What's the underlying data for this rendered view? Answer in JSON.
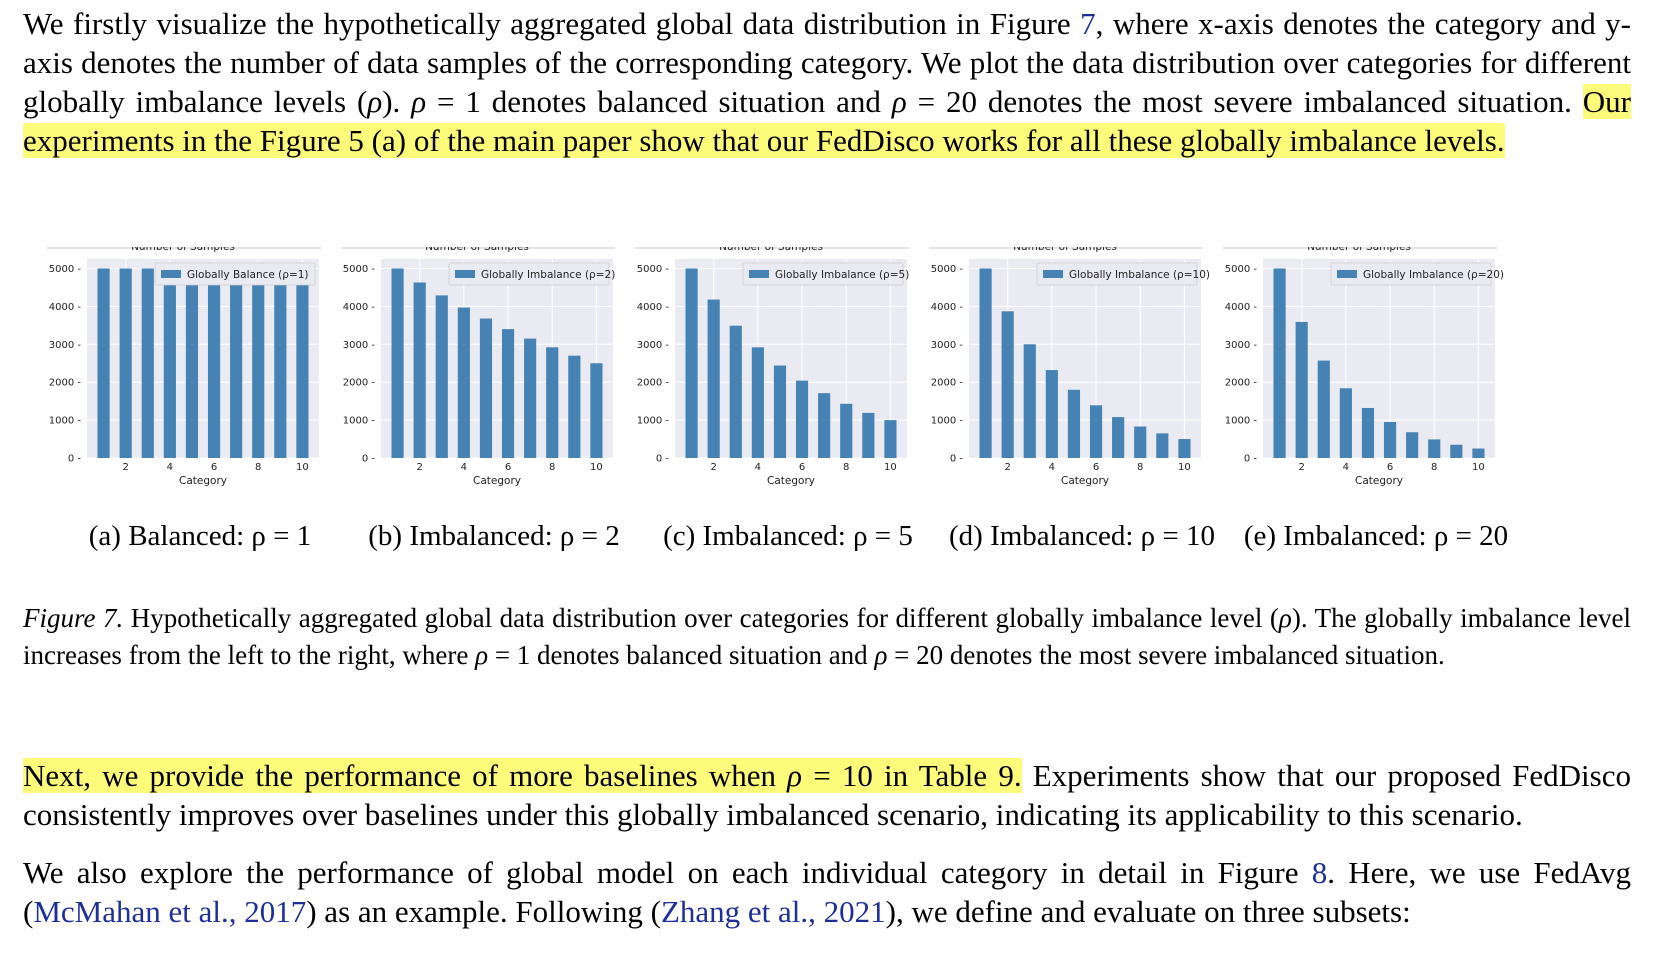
{
  "paragraph1": {
    "text_a": "We firstly visualize the hypothetically aggregated global data distribution in Figure ",
    "ref_fig": "7",
    "text_b": ", where x-axis denotes the category and y-axis denotes the number of data samples of the corresponding category. We plot the data distribution over categories for different globally imbalance levels (",
    "rho": "ρ",
    "text_c": "). ",
    "text_d": " = 1 denotes balanced situation and ",
    "text_e": " = 20 denotes the most severe imbalanced situation. ",
    "highlight": "Our experiments in the Figure 5 (a) of the main paper show that our FedDisco works for all these globally imbalance levels."
  },
  "figure": {
    "caption_label": "Figure 7.",
    "caption_a": " Hypothetically aggregated global data distribution over categories for different globally imbalance level (",
    "caption_b": "). The globally imbalance level increases from the left to the right, where ",
    "caption_c": " = 1 denotes balanced situation and ",
    "caption_d": " = 20 denotes the most severe imbalanced situation."
  },
  "chart_data": [
    {
      "type": "bar",
      "title": "Number of Samples",
      "xlabel": "Category",
      "legend": "Globally Balance (ρ=1)",
      "subcaption": "(a) Balanced: ρ = 1",
      "x": [
        1,
        2,
        3,
        4,
        5,
        6,
        7,
        8,
        9,
        10
      ],
      "values": [
        5000,
        5000,
        5000,
        5000,
        5000,
        5000,
        5000,
        5000,
        5000,
        5000
      ],
      "xticks": [
        "2",
        "4",
        "6",
        "8",
        "10"
      ],
      "yticks": [
        "0",
        "1000",
        "2000",
        "3000",
        "4000",
        "5000"
      ],
      "ylim": [
        0,
        5250
      ],
      "legend_position": "top-right",
      "grid": true,
      "color": "#4682b4"
    },
    {
      "type": "bar",
      "title": "Number of Samples",
      "xlabel": "Category",
      "legend": "Globally Imbalance (ρ=2)",
      "subcaption": "(b) Imbalanced: ρ = 2",
      "x": [
        1,
        2,
        3,
        4,
        5,
        6,
        7,
        8,
        9,
        10
      ],
      "values": [
        5000,
        4630,
        4290,
        3970,
        3680,
        3400,
        3150,
        2920,
        2700,
        2500
      ],
      "xticks": [
        "2",
        "4",
        "6",
        "8",
        "10"
      ],
      "yticks": [
        "0",
        "1000",
        "2000",
        "3000",
        "4000",
        "5000"
      ],
      "ylim": [
        0,
        5250
      ],
      "legend_position": "top-right",
      "grid": true,
      "color": "#4682b4"
    },
    {
      "type": "bar",
      "title": "Number of Samples",
      "xlabel": "Category",
      "legend": "Globally Imbalance (ρ=5)",
      "subcaption": "(c) Imbalanced: ρ = 5",
      "x": [
        1,
        2,
        3,
        4,
        5,
        6,
        7,
        8,
        9,
        10
      ],
      "values": [
        5000,
        4180,
        3490,
        2920,
        2440,
        2040,
        1710,
        1430,
        1190,
        1000
      ],
      "xticks": [
        "2",
        "4",
        "6",
        "8",
        "10"
      ],
      "yticks": [
        "0",
        "1000",
        "2000",
        "3000",
        "4000",
        "5000"
      ],
      "ylim": [
        0,
        5250
      ],
      "legend_position": "top-right",
      "grid": true,
      "color": "#4682b4"
    },
    {
      "type": "bar",
      "title": "Number of Samples",
      "xlabel": "Category",
      "legend": "Globally Imbalance (ρ=10)",
      "subcaption": "(d) Imbalanced: ρ = 10",
      "x": [
        1,
        2,
        3,
        4,
        5,
        6,
        7,
        8,
        9,
        10
      ],
      "values": [
        5000,
        3870,
        3000,
        2320,
        1800,
        1390,
        1080,
        830,
        650,
        500
      ],
      "xticks": [
        "2",
        "4",
        "6",
        "8",
        "10"
      ],
      "yticks": [
        "0",
        "1000",
        "2000",
        "3000",
        "4000",
        "5000"
      ],
      "ylim": [
        0,
        5250
      ],
      "legend_position": "top-right",
      "grid": true,
      "color": "#4682b4"
    },
    {
      "type": "bar",
      "title": "Number of Samples",
      "xlabel": "Category",
      "legend": "Globally Imbalance (ρ=20)",
      "subcaption": "(e) Imbalanced: ρ = 20",
      "x": [
        1,
        2,
        3,
        4,
        5,
        6,
        7,
        8,
        9,
        10
      ],
      "values": [
        5000,
        3590,
        2570,
        1840,
        1320,
        950,
        680,
        490,
        350,
        250
      ],
      "xticks": [
        "2",
        "4",
        "6",
        "8",
        "10"
      ],
      "yticks": [
        "0",
        "1000",
        "2000",
        "3000",
        "4000",
        "5000"
      ],
      "ylim": [
        0,
        5250
      ],
      "legend_position": "top-right",
      "grid": true,
      "color": "#4682b4"
    }
  ],
  "paragraph3": {
    "highlight_a": "Next, we provide the performance of more baselines when ",
    "rho": "ρ",
    "highlight_b": " = 10 in Table 9.",
    "text": " Experiments show that our proposed FedDisco consistently improves over baselines under this globally imbalanced scenario, indicating its applicability to this scenario."
  },
  "paragraph4": {
    "text_a": "We also explore the performance of global model on each individual category in detail in Figure ",
    "ref_fig": "8",
    "text_b": ".  Here, we use FedAvg (",
    "cite1_name": "McMahan et al., ",
    "cite1_year": "2017",
    "text_c": ") as an example. Following (",
    "cite2_name": "Zhang et al., ",
    "cite2_year": "2021",
    "text_d": "), we define and evaluate on three subsets:"
  }
}
